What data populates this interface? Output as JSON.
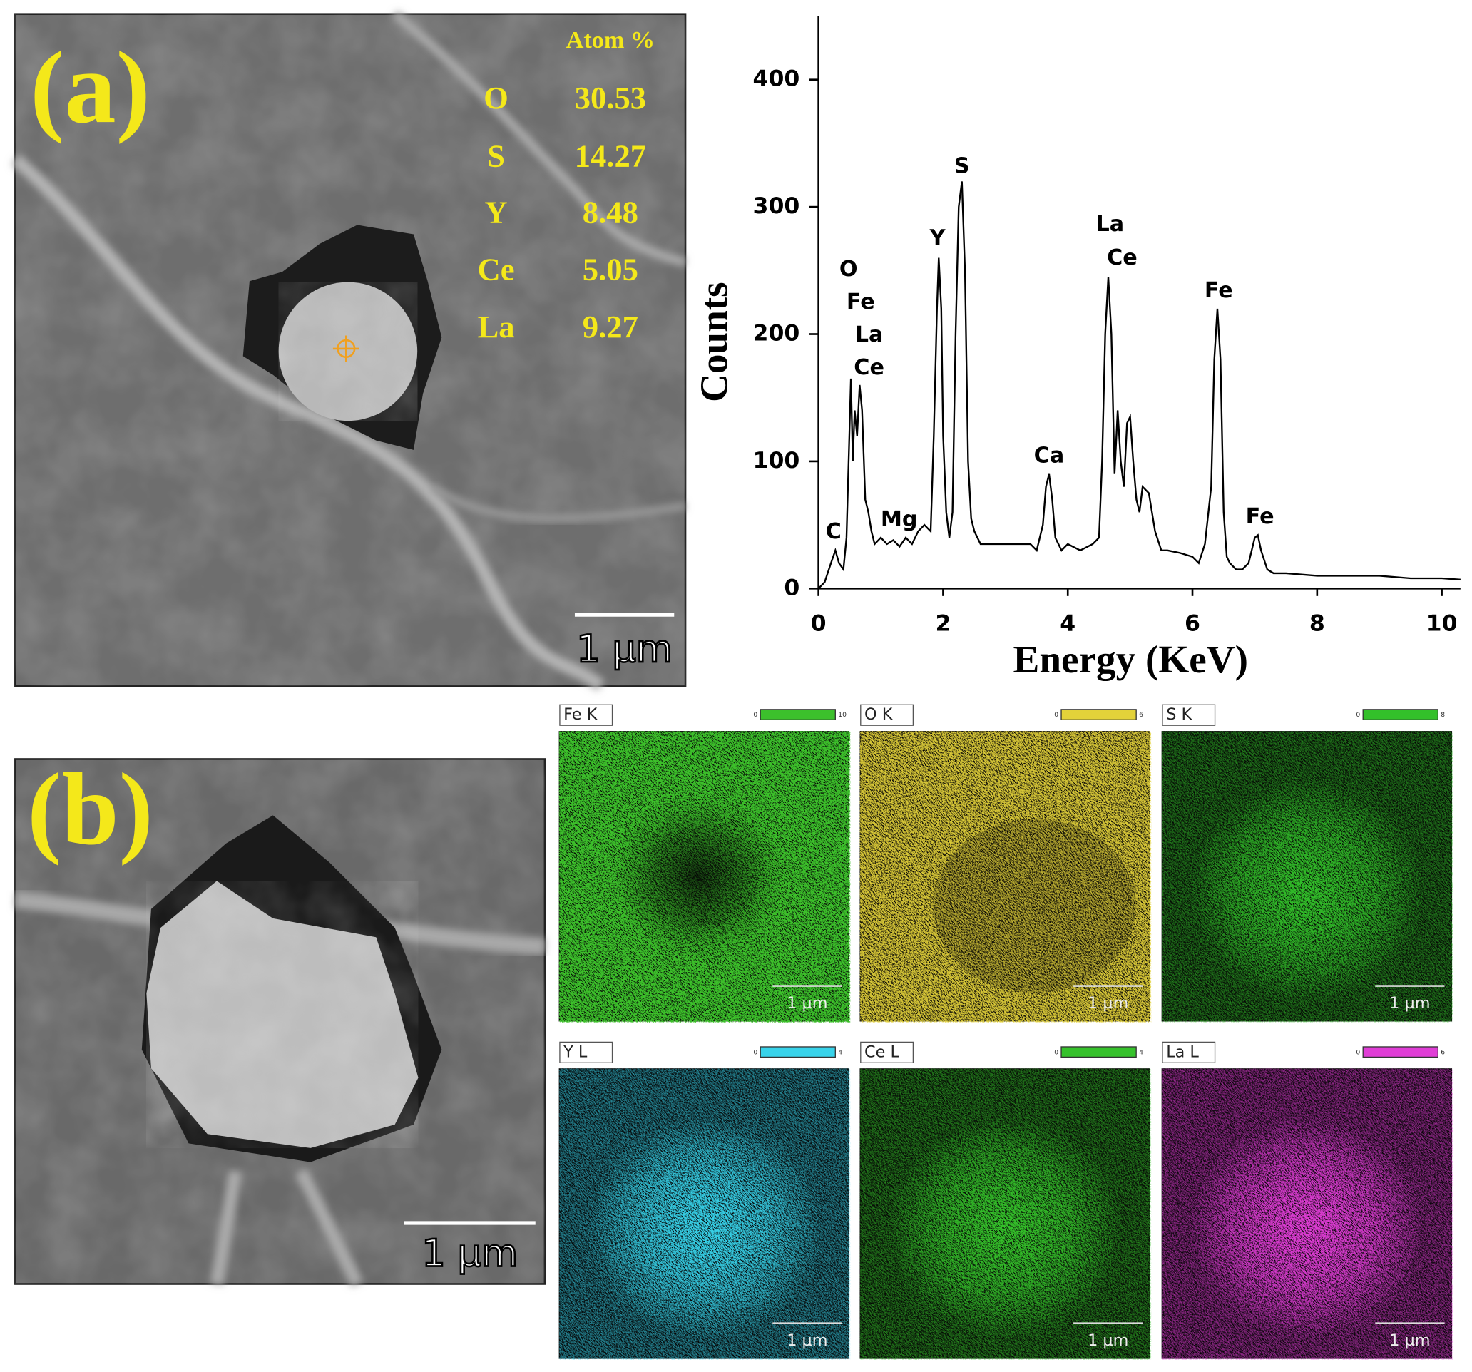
{
  "panel_a": {
    "label": "(a)",
    "table": {
      "header": "Atom %",
      "rows": [
        [
          "O",
          30.53
        ],
        [
          "S",
          14.27
        ],
        [
          "Y",
          8.48
        ],
        [
          "Ce",
          5.05
        ],
        [
          "La",
          9.27
        ]
      ]
    },
    "scale_bar": "1 µm"
  },
  "panel_b": {
    "label": "(b)",
    "scale_bar": "1 µm"
  },
  "maps": [
    {
      "label": "Fe K",
      "color": "#3cc02c",
      "range": [
        0,
        10
      ],
      "scale_bar": "1 µm"
    },
    {
      "label": "O K",
      "color": "#e3d23a",
      "range": [
        0,
        6
      ],
      "scale_bar": "1 µm"
    },
    {
      "label": "S K",
      "color": "#33c02a",
      "range": [
        0,
        8
      ],
      "scale_bar": "1 µm"
    },
    {
      "label": "Y L",
      "color": "#38d3ea",
      "range": [
        0,
        4
      ],
      "scale_bar": "1 µm"
    },
    {
      "label": "Ce L",
      "color": "#36c22c",
      "range": [
        0,
        4
      ],
      "scale_bar": "1 µm"
    },
    {
      "label": "La L",
      "color": "#e03ed6",
      "range": [
        0,
        6
      ],
      "scale_bar": "1 µm"
    }
  ],
  "chart_data": {
    "type": "line",
    "xlabel": "Energy (KeV)",
    "ylabel": "Counts",
    "color": "#000000",
    "x": [
      0,
      0.1,
      0.2,
      0.27,
      0.33,
      0.4,
      0.45,
      0.5,
      0.52,
      0.55,
      0.58,
      0.62,
      0.66,
      0.7,
      0.75,
      0.8,
      0.85,
      0.9,
      1.0,
      1.1,
      1.2,
      1.3,
      1.4,
      1.5,
      1.6,
      1.7,
      1.8,
      1.85,
      1.9,
      1.93,
      1.97,
      2.0,
      2.05,
      2.1,
      2.15,
      2.2,
      2.25,
      2.3,
      2.35,
      2.4,
      2.45,
      2.5,
      2.6,
      2.8,
      3.0,
      3.2,
      3.4,
      3.5,
      3.6,
      3.65,
      3.7,
      3.75,
      3.8,
      3.9,
      4.0,
      4.2,
      4.4,
      4.5,
      4.55,
      4.6,
      4.65,
      4.7,
      4.75,
      4.8,
      4.85,
      4.9,
      4.95,
      5.0,
      5.05,
      5.1,
      5.15,
      5.2,
      5.3,
      5.4,
      5.5,
      5.6,
      5.8,
      6.0,
      6.1,
      6.2,
      6.3,
      6.35,
      6.4,
      6.45,
      6.5,
      6.55,
      6.6,
      6.7,
      6.8,
      6.9,
      7.0,
      7.05,
      7.1,
      7.2,
      7.3,
      7.5,
      8.0,
      8.5,
      9.0,
      9.5,
      10.0,
      10.3
    ],
    "values": [
      0,
      5,
      20,
      30,
      20,
      15,
      40,
      130,
      165,
      100,
      140,
      120,
      160,
      140,
      70,
      60,
      45,
      35,
      40,
      35,
      38,
      33,
      40,
      35,
      45,
      50,
      45,
      120,
      220,
      260,
      220,
      120,
      60,
      40,
      60,
      200,
      300,
      320,
      250,
      100,
      55,
      45,
      35,
      35,
      35,
      35,
      35,
      30,
      50,
      80,
      90,
      70,
      40,
      30,
      35,
      30,
      35,
      40,
      100,
      200,
      245,
      200,
      90,
      140,
      100,
      80,
      130,
      135,
      100,
      70,
      60,
      80,
      75,
      45,
      30,
      30,
      28,
      25,
      20,
      35,
      80,
      180,
      220,
      180,
      60,
      25,
      20,
      15,
      15,
      20,
      40,
      42,
      30,
      15,
      12,
      12,
      10,
      10,
      10,
      8,
      8,
      7
    ],
    "xlim": [
      0,
      10.3
    ],
    "ylim": [
      0,
      450
    ],
    "xticks": [
      0,
      2,
      4,
      6,
      8,
      10
    ],
    "yticks": [
      0,
      100,
      200,
      300,
      400
    ],
    "annotations": [
      "C",
      "O",
      "Fe",
      "La",
      "Ce",
      "Mg",
      "Y",
      "S",
      "Ca",
      "La",
      "Ce",
      "Fe",
      "Fe"
    ]
  }
}
